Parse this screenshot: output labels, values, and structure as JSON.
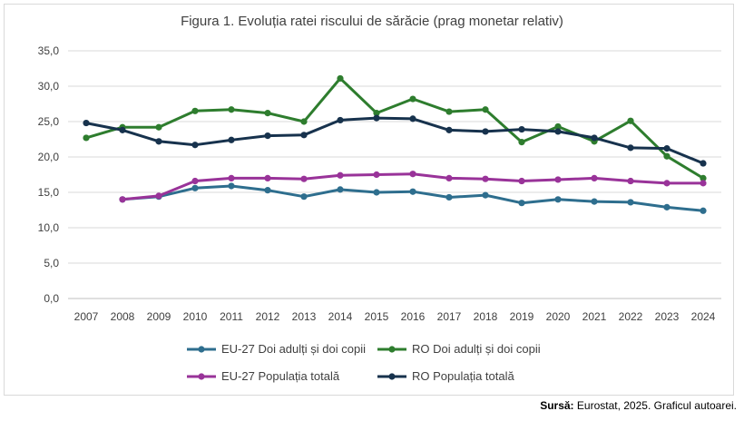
{
  "chart_data": {
    "type": "line",
    "title": "Figura 1. Evoluția ratei riscului de sărăcie (prag monetar relativ)",
    "xlabel": "",
    "ylabel": "",
    "ylim": [
      0,
      35
    ],
    "ytick_step": 5,
    "ytick_labels": [
      "0,0",
      "5,0",
      "10,0",
      "15,0",
      "20,0",
      "25,0",
      "30,0",
      "35,0"
    ],
    "grid": true,
    "legend_position": "bottom",
    "categories": [
      "2007",
      "2008",
      "2009",
      "2010",
      "2011",
      "2012",
      "2013",
      "2014",
      "2015",
      "2016",
      "2017",
      "2018",
      "2019",
      "2020",
      "2021",
      "2022",
      "2023",
      "2024"
    ],
    "series": [
      {
        "name": "EU-27 Doi adulți și doi copii",
        "color": "#2e6e8e",
        "values": [
          null,
          14.0,
          14.4,
          15.6,
          15.9,
          15.3,
          14.4,
          15.4,
          15.0,
          15.1,
          14.3,
          14.6,
          13.5,
          14.0,
          13.7,
          13.6,
          12.9,
          12.4
        ]
      },
      {
        "name": "RO Doi adulți și doi copii",
        "color": "#2e7d2e",
        "values": [
          22.7,
          24.2,
          24.2,
          26.5,
          26.7,
          26.2,
          25.0,
          31.1,
          26.2,
          28.2,
          26.4,
          26.7,
          22.1,
          24.3,
          22.2,
          25.1,
          20.1,
          17.0
        ]
      },
      {
        "name": "EU-27 Populația totală",
        "color": "#993399",
        "values": [
          null,
          14.0,
          14.5,
          16.6,
          17.0,
          17.0,
          16.9,
          17.4,
          17.5,
          17.6,
          17.0,
          16.9,
          16.6,
          16.8,
          17.0,
          16.6,
          16.3,
          16.3
        ]
      },
      {
        "name": "RO  Populația totală",
        "color": "#17324d",
        "values": [
          24.8,
          23.8,
          22.2,
          21.7,
          22.4,
          23.0,
          23.1,
          25.2,
          25.5,
          25.4,
          23.8,
          23.6,
          23.9,
          23.6,
          22.7,
          21.3,
          21.2,
          19.1
        ]
      }
    ]
  },
  "source": {
    "label": "Sursă:",
    "text": " Eurostat, 2025. Graficul autoarei."
  }
}
